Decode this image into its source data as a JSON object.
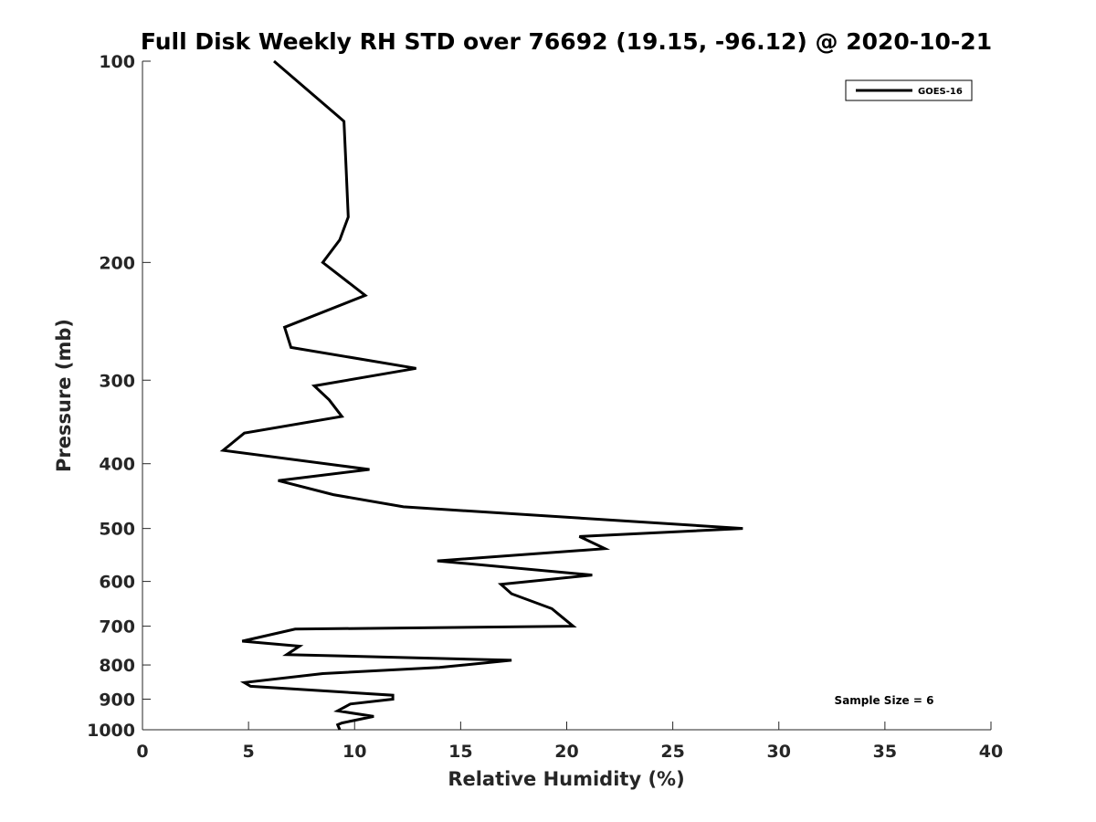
{
  "chart_data": {
    "type": "line",
    "title": "Full Disk Weekly RH STD over 76692 (19.15, -96.12) @ 2020-10-21",
    "xlabel": "Relative Humidity (%)",
    "ylabel": "Pressure (mb)",
    "xlim": [
      0,
      40
    ],
    "ylim": [
      100,
      1000
    ],
    "y_scale": "log",
    "y_reversed": true,
    "xticks": [
      0,
      5,
      10,
      15,
      20,
      25,
      30,
      35,
      40
    ],
    "yticks": [
      100,
      200,
      300,
      400,
      500,
      600,
      700,
      800,
      900,
      1000
    ],
    "grid": false,
    "legend_position": "top-right",
    "annotation": "Sample Size = 6",
    "series": [
      {
        "name": "GOES-16",
        "color": "#000000",
        "points": [
          [
            6.2,
            100
          ],
          [
            9.5,
            123
          ],
          [
            9.6,
            145
          ],
          [
            9.7,
            171
          ],
          [
            9.3,
            185
          ],
          [
            8.5,
            200
          ],
          [
            10.5,
            224
          ],
          [
            6.7,
            250
          ],
          [
            7.0,
            268
          ],
          [
            12.9,
            288
          ],
          [
            8.1,
            306
          ],
          [
            8.8,
            321
          ],
          [
            9.4,
            340
          ],
          [
            4.8,
            360
          ],
          [
            3.8,
            382
          ],
          [
            10.7,
            408
          ],
          [
            6.4,
            424
          ],
          [
            9.0,
            445
          ],
          [
            12.3,
            464
          ],
          [
            28.3,
            500
          ],
          [
            20.6,
            514
          ],
          [
            21.8,
            536
          ],
          [
            13.9,
            559
          ],
          [
            21.2,
            587
          ],
          [
            16.9,
            606
          ],
          [
            17.4,
            626
          ],
          [
            19.3,
            659
          ],
          [
            19.6,
            671
          ],
          [
            20.3,
            700
          ],
          [
            7.2,
            707
          ],
          [
            4.7,
            737
          ],
          [
            7.4,
            750
          ],
          [
            6.8,
            772
          ],
          [
            17.4,
            787
          ],
          [
            14.0,
            807
          ],
          [
            8.5,
            824
          ],
          [
            4.8,
            850
          ],
          [
            5.1,
            861
          ],
          [
            11.8,
            888
          ],
          [
            11.8,
            900
          ],
          [
            9.8,
            915
          ],
          [
            9.2,
            937
          ],
          [
            10.9,
            955
          ],
          [
            9.4,
            977
          ],
          [
            9.2,
            983
          ],
          [
            9.3,
            1000
          ]
        ]
      }
    ]
  }
}
